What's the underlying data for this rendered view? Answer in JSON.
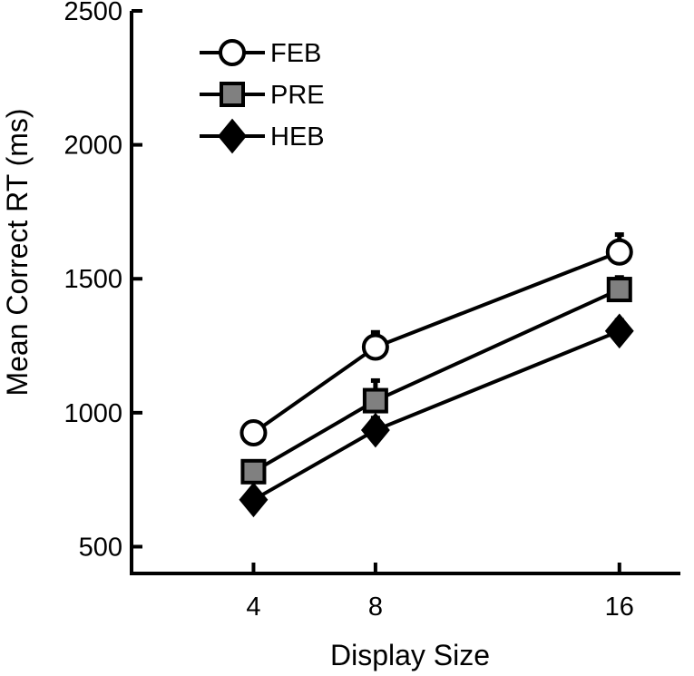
{
  "chart_data": {
    "type": "line",
    "xlabel": "Display Size",
    "ylabel": "Mean Correct RT (ms)",
    "x": [
      4,
      8,
      16
    ],
    "xticks": [
      4,
      8,
      16
    ],
    "xlim": [
      0,
      18
    ],
    "yticks": [
      500,
      1000,
      1500,
      2000,
      2500
    ],
    "ylim": [
      400,
      2500
    ],
    "grid": false,
    "legend_position": "top-left",
    "series": [
      {
        "name": "FEB",
        "marker": "circle",
        "fill": "#ffffff",
        "values": [
          925,
          1245,
          1600
        ],
        "error": [
          20,
          55,
          65
        ]
      },
      {
        "name": "PRE",
        "marker": "square",
        "fill": "#808080",
        "values": [
          780,
          1045,
          1460
        ],
        "error": [
          25,
          75,
          45
        ]
      },
      {
        "name": "HEB",
        "marker": "diamond",
        "fill": "#000000",
        "values": [
          675,
          935,
          1305
        ],
        "error": [
          20,
          45,
          40
        ]
      }
    ]
  }
}
